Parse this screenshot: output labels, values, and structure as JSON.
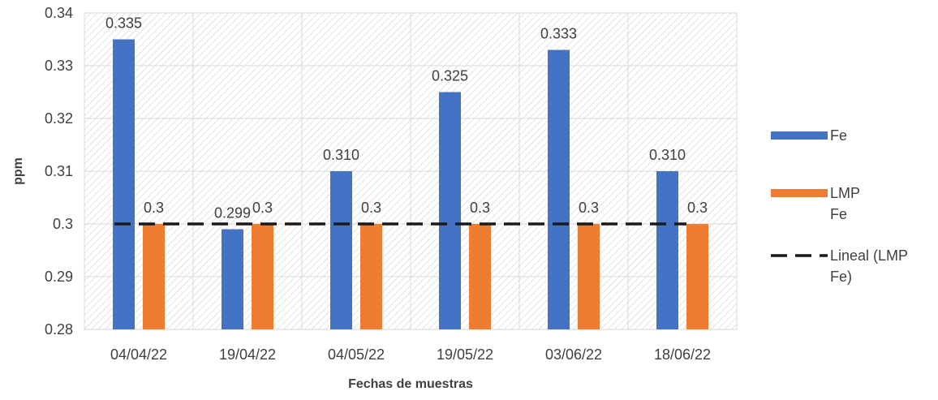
{
  "chart_data": {
    "type": "bar",
    "categories": [
      "04/04/22",
      "19/04/22",
      "04/05/22",
      "19/05/22",
      "03/06/22",
      "18/06/22"
    ],
    "series": [
      {
        "name": "Fe",
        "values": [
          0.335,
          0.299,
          0.31,
          0.325,
          0.333,
          0.31
        ],
        "labels": [
          "0.335",
          "0.299",
          "0.310",
          "0.325",
          "0.333",
          "0.310"
        ],
        "color": "#4472C4"
      },
      {
        "name": "LMP Fe",
        "values": [
          0.3,
          0.3,
          0.3,
          0.3,
          0.3,
          0.3
        ],
        "labels": [
          "0.3",
          "0.3",
          "0.3",
          "0.3",
          "0.3",
          "0.3"
        ],
        "color": "#ED7D31"
      }
    ],
    "trendline": {
      "name": "Lineal (LMP Fe)",
      "of_series": "LMP Fe",
      "value": 0.3,
      "color": "#1a1a1a",
      "style": "dashed"
    },
    "title": "",
    "xlabel": "Fechas de muestras",
    "ylabel": "ppm",
    "ylim": [
      0.28,
      0.34
    ],
    "yticks": [
      "0.28",
      "0.29",
      "0.3",
      "0.31",
      "0.32",
      "0.33",
      "0.34"
    ],
    "grid": true,
    "legend_position": "right",
    "legend_lines": [
      [
        "Fe"
      ],
      [
        "LMP",
        "Fe"
      ],
      [
        "Lineal (LMP",
        "Fe)"
      ]
    ]
  }
}
